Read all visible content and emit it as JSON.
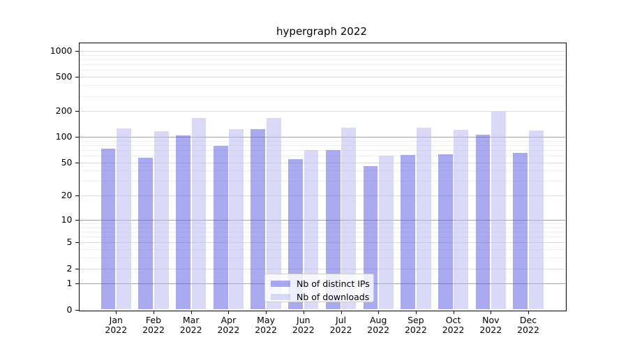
{
  "chart_data": {
    "type": "bar",
    "title": "hypergraph 2022",
    "months": [
      "Jan",
      "Feb",
      "Mar",
      "Apr",
      "May",
      "Jun",
      "Jul",
      "Aug",
      "Sep",
      "Oct",
      "Nov",
      "Dec"
    ],
    "year": "2022",
    "series": [
      {
        "name": "Nb of distinct IPs",
        "color": "rgba(86,86,228,0.5)",
        "values": [
          72,
          57,
          103,
          79,
          122,
          55,
          70,
          45,
          61,
          63,
          106,
          65
        ]
      },
      {
        "name": "Nb of downloads",
        "color": "rgba(182,182,242,0.5)",
        "values": [
          125,
          116,
          165,
          122,
          165,
          70,
          128,
          60,
          129,
          121,
          197,
          119
        ]
      }
    ],
    "yscale": "log1p",
    "ylim": [
      0,
      1265
    ],
    "yticks": [
      0,
      1,
      2,
      5,
      10,
      20,
      50,
      100,
      200,
      500,
      1000
    ],
    "grid": true,
    "legend_position": "lower center"
  },
  "colors": {
    "grid_major": "#a3a3a3",
    "grid_tick": "#dcdcdc",
    "grid_minor": "#eeeeee",
    "spine": "#000000",
    "text": "#000000",
    "legend_border": "#cccccc",
    "legend_bg": "rgba(255,255,255,0.8)"
  }
}
